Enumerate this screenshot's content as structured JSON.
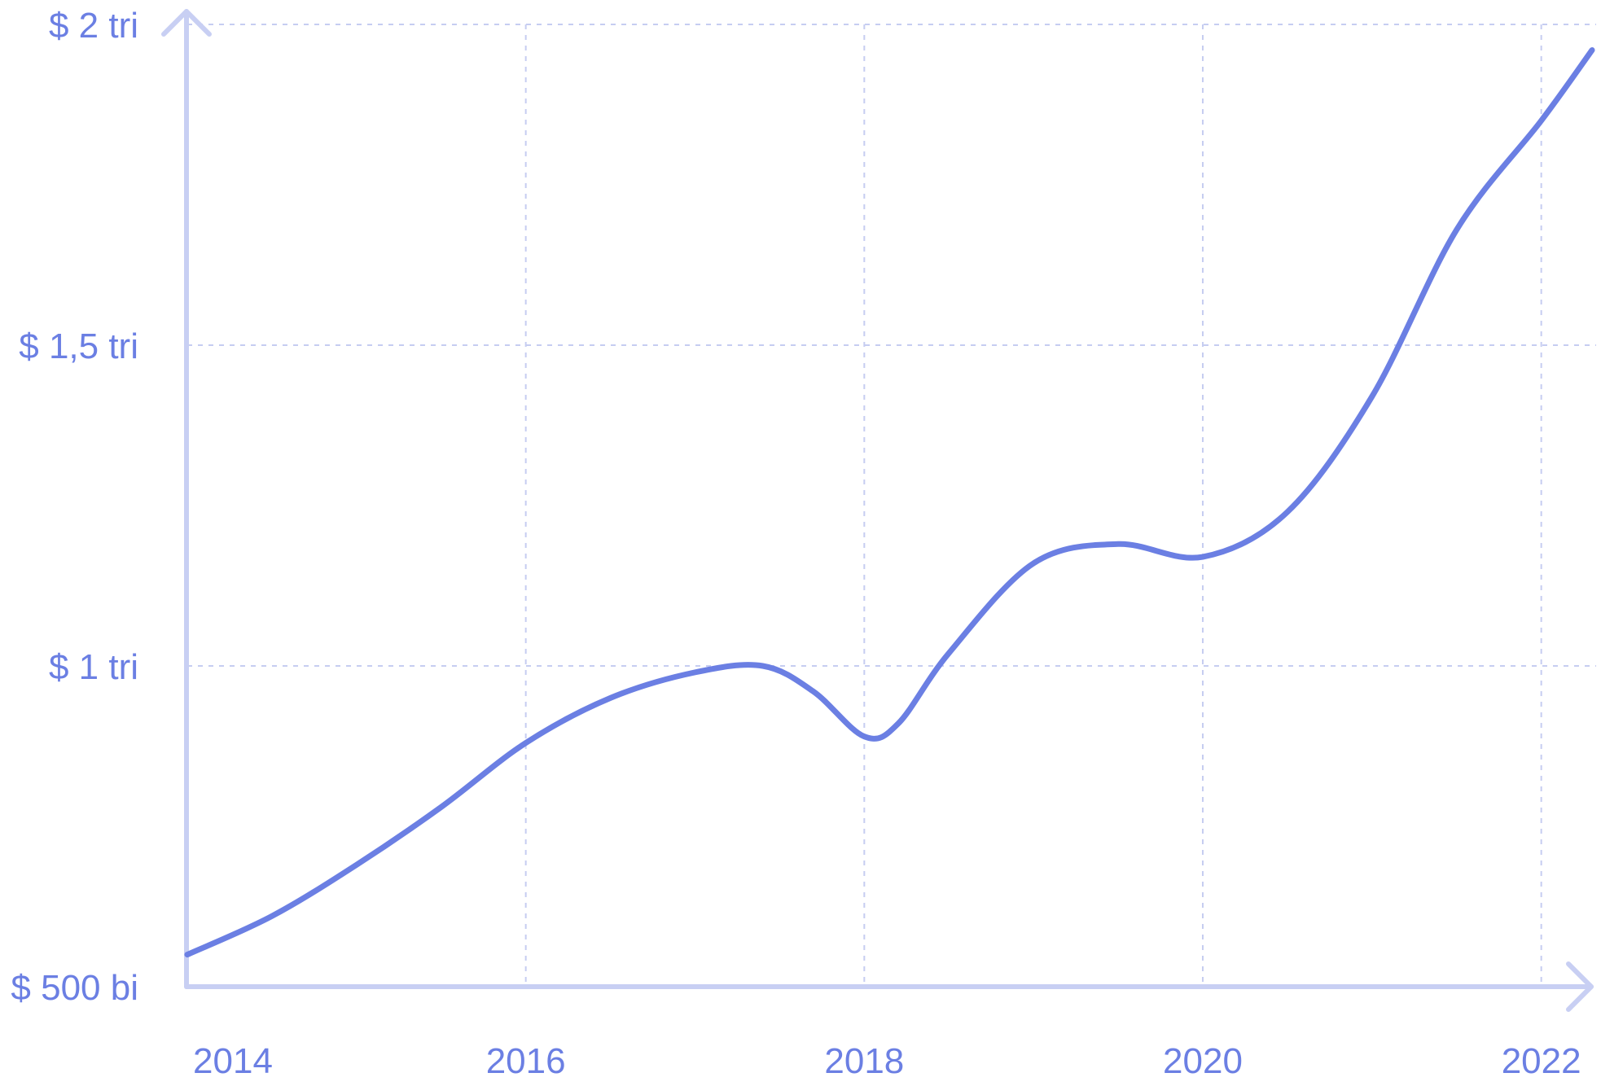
{
  "chart_data": {
    "type": "line",
    "title": "",
    "xlabel": "",
    "ylabel": "",
    "x_ticks": [
      "2014",
      "2016",
      "2018",
      "2020",
      "2022"
    ],
    "y_ticks": [
      {
        "value": 500,
        "label": "$ 500 bi"
      },
      {
        "value": 1000,
        "label": "$ 1 tri"
      },
      {
        "value": 1500,
        "label": "$ 1,5 tri"
      },
      {
        "value": 2000,
        "label": "$ 2 tri"
      }
    ],
    "xlim": [
      2014,
      2022.3
    ],
    "ylim": [
      500,
      2000
    ],
    "grid": true,
    "colors": {
      "series": "#6b7fe3",
      "axis": "#c8cff3",
      "grid": "#c6cdf1",
      "text": "#6b7fe3"
    },
    "series": [
      {
        "x": [
          2014.0,
          2014.5,
          2015.0,
          2015.5,
          2016.0,
          2016.5,
          2017.0,
          2017.4,
          2017.7,
          2018.0,
          2018.2,
          2018.5,
          2019.0,
          2019.5,
          2020.0,
          2020.5,
          2021.0,
          2021.5,
          2022.0,
          2022.3
        ],
        "values": [
          550,
          610,
          690,
          780,
          880,
          950,
          990,
          1000,
          960,
          890,
          910,
          1020,
          1160,
          1190,
          1170,
          1240,
          1420,
          1680,
          1850,
          1960
        ]
      }
    ]
  }
}
